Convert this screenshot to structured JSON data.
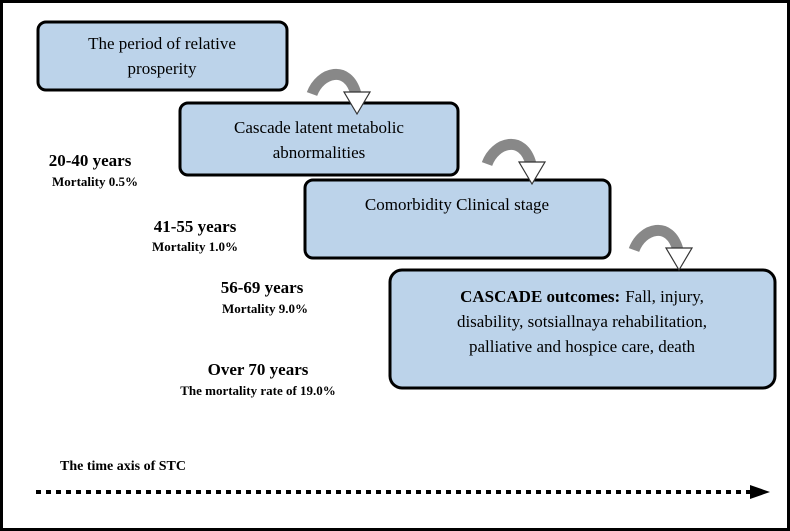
{
  "stages": [
    {
      "lines": [
        "The period of relative",
        "prosperity"
      ]
    },
    {
      "lines": [
        "Cascade latent metabolic",
        "abnormalities"
      ]
    },
    {
      "lines": [
        "Comorbidity Clinical stage"
      ]
    },
    {
      "heading": "CASCADE outcomes:",
      "lines": [
        "Fall, injury,",
        "disability, sotsiallnaya rehabilitation,",
        "palliative and hospice care, death"
      ]
    }
  ],
  "age_groups": [
    {
      "age": "20-40 years",
      "mortality": "Mortality 0.5%"
    },
    {
      "age": "41-55 years",
      "mortality": "Mortality 1.0%"
    },
    {
      "age": "56-69 years",
      "mortality": "Mortality 9.0%"
    },
    {
      "age": "Over 70 years",
      "mortality": "The mortality rate of 19.0%"
    }
  ],
  "axis_label": "The time axis of STC"
}
